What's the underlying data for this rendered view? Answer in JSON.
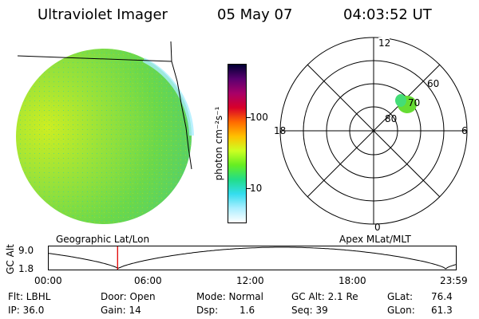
{
  "header": {
    "instrument": "Ultraviolet Imager",
    "date": "05 May 07",
    "time": "04:03:52 UT"
  },
  "colorbar": {
    "label": "photon cm⁻²s⁻¹",
    "ticks": [
      "100",
      "10"
    ],
    "colors": [
      "#000033",
      "#5a0070",
      "#a80068",
      "#d8002a",
      "#ff6a00",
      "#ffc000",
      "#ccff22",
      "#66ee22",
      "#22dd88",
      "#33ddee",
      "#aaeeff",
      "#ffffff"
    ]
  },
  "polar": {
    "mlt_labels": {
      "top": "12",
      "bottom": "0",
      "left": "18",
      "right": "6"
    },
    "lat_labels": [
      "60",
      "70",
      "80"
    ]
  },
  "left_label": "Geographic Lat/Lon",
  "right_label": "Apex MLat/MLT",
  "altitude_plot": {
    "ylabel": "GC Alt",
    "ymax": "9.0",
    "ymin": "1.8",
    "xticks": [
      "00:00",
      "06:00",
      "12:00",
      "18:00",
      "23:59"
    ],
    "current_time_marker_hour": 4.06
  },
  "info": {
    "filter": "Flt: LBHL",
    "ip": "IP: 36.0",
    "door": "Door: Open",
    "gain": "Gain: 14",
    "mode": "Mode: Normal",
    "dsp_label": "Dsp:",
    "dsp_value": "1.6",
    "gc_alt": "GC Alt: 2.1 Re",
    "seq": "Seq: 39",
    "glat_label": "GLat:",
    "glat_value": "76.4",
    "glon_label": "GLon:",
    "glon_value": "61.3"
  }
}
